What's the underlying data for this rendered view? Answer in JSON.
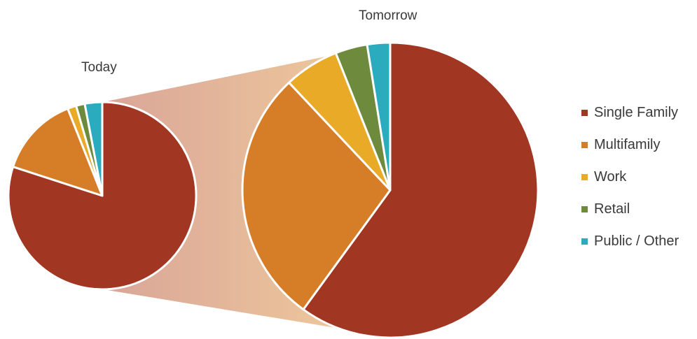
{
  "chart_data": [
    {
      "type": "pie",
      "title": "Today",
      "categories": [
        "Single Family",
        "Multifamily",
        "Work",
        "Retail",
        "Public / Other"
      ],
      "values": [
        80,
        14,
        1.5,
        1.5,
        3
      ],
      "unit": "%"
    },
    {
      "type": "pie",
      "title": "Tomorrow",
      "categories": [
        "Single Family",
        "Multifamily",
        "Work",
        "Retail",
        "Public / Other"
      ],
      "values": [
        60,
        28,
        6,
        3.5,
        2.5
      ],
      "unit": "%"
    }
  ],
  "legend": {
    "placement": "right",
    "items": [
      {
        "label": "Single Family",
        "color": "#A13622"
      },
      {
        "label": "Multifamily",
        "color": "#D57D27"
      },
      {
        "label": "Work",
        "color": "#E9AA28"
      },
      {
        "label": "Retail",
        "color": "#6E8B3D"
      },
      {
        "label": "Public / Other",
        "color": "#2BABBE"
      }
    ]
  },
  "connector_colors": [
    "#D9A598",
    "#F1CE9C"
  ]
}
